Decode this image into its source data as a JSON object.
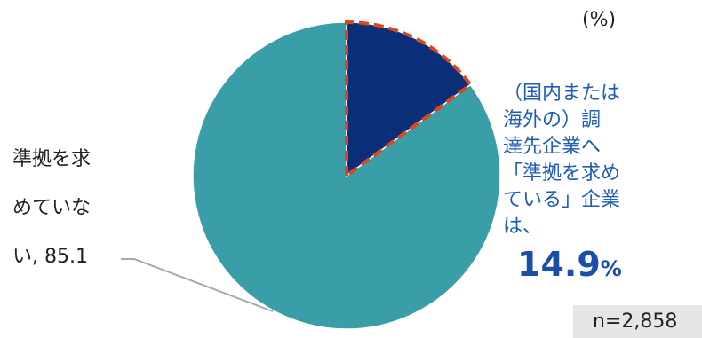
{
  "unit_label": "(%)",
  "sample_size": "n=2,858",
  "chart_data": {
    "type": "pie",
    "slices": [
      {
        "label": "（国内または海外の）調達先企業へ「準拠を求めている」企業は、",
        "value": 14.9,
        "color": "#0b2e78"
      },
      {
        "label": "準拠を求めていない",
        "value": 85.1,
        "color": "#3a9ea8"
      }
    ],
    "highlight_outline_color": "#e0441c"
  },
  "labels": {
    "left_lines": [
      "準拠を求",
      "めていな",
      "い, 85.1"
    ],
    "right_lines": [
      "（国内または",
      "海外の）調",
      "達先企業へ",
      "「準拠を求め",
      "ている」企業",
      "は、"
    ],
    "right_value": "14.9",
    "right_value_unit": "%"
  }
}
